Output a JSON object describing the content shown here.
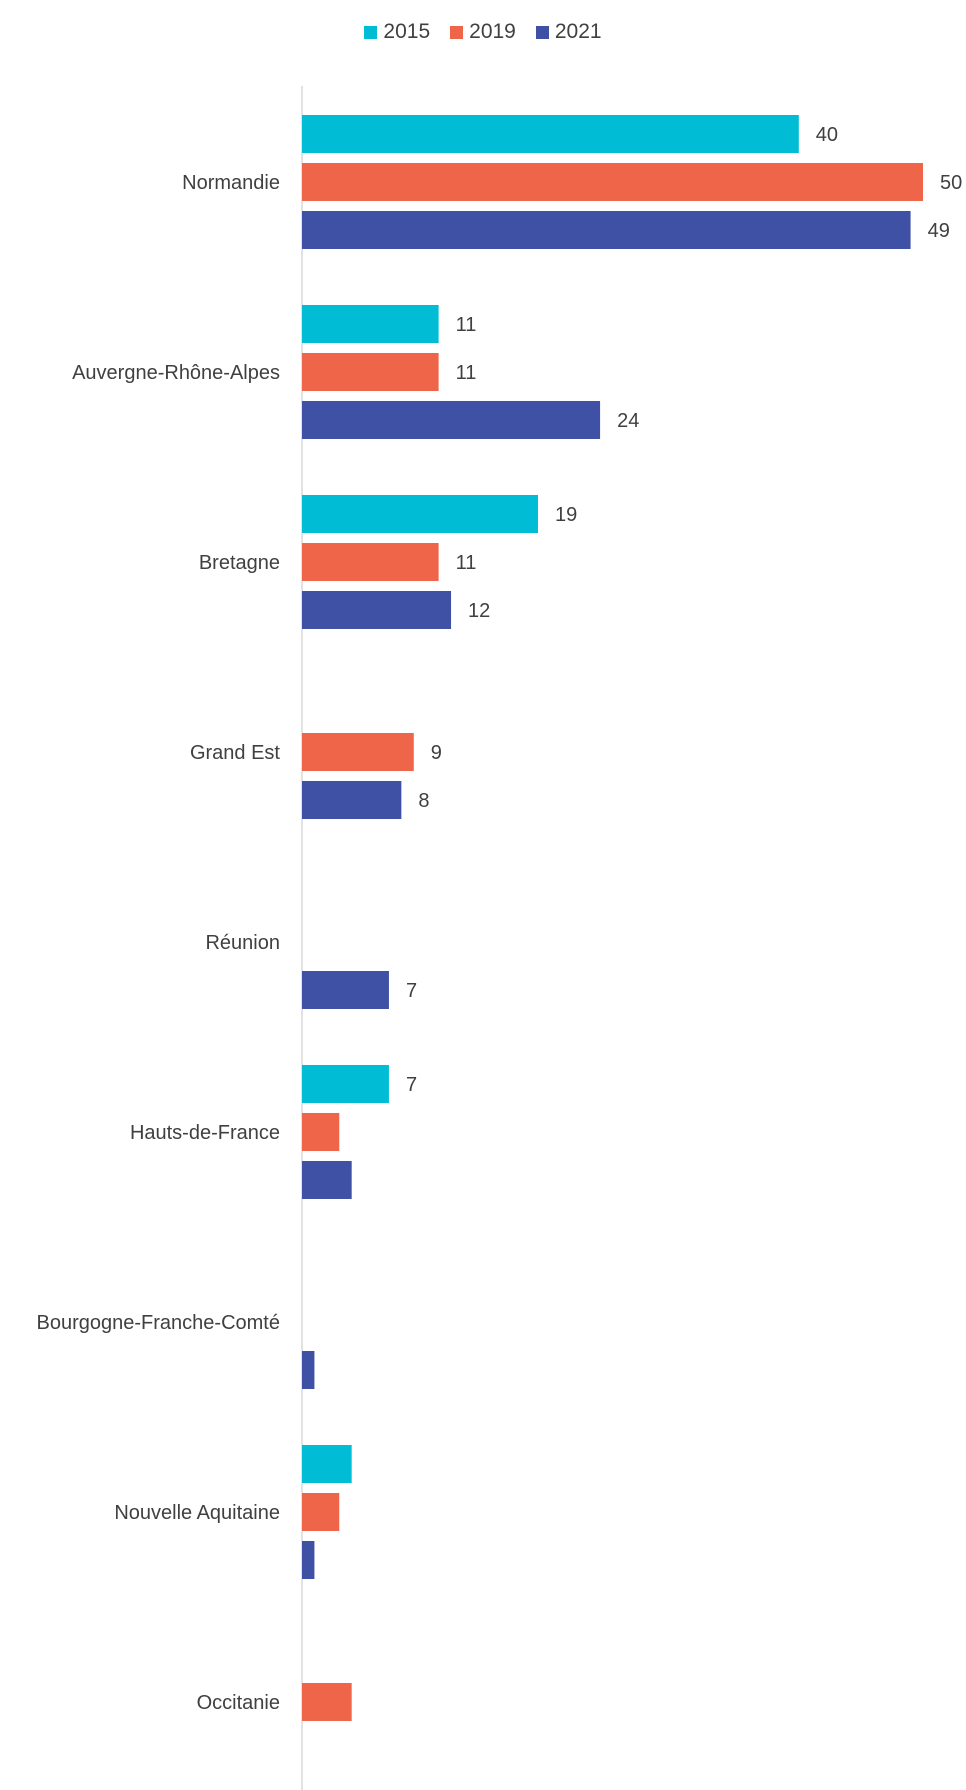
{
  "chart_data": {
    "type": "bar",
    "orientation": "horizontal",
    "legend_position": "top",
    "grid": false,
    "categories": [
      "Normandie",
      "Auvergne-Rhône-Alpes",
      "Bretagne",
      "Grand Est",
      "Réunion",
      "Hauts-de-France",
      "Bourgogne-Franche-Comté",
      "Nouvelle Aquitaine",
      "Occitanie"
    ],
    "series": [
      {
        "name": "2015",
        "color": "#00BCD4",
        "values": [
          40,
          11,
          19,
          null,
          null,
          7,
          null,
          4,
          null
        ],
        "labels": [
          "40",
          "11",
          "19",
          "",
          "",
          "7",
          "",
          "",
          ""
        ]
      },
      {
        "name": "2019",
        "color": "#EF6549",
        "values": [
          50,
          11,
          11,
          9,
          null,
          3,
          null,
          3,
          4
        ],
        "labels": [
          "50",
          "11",
          "11",
          "9",
          "",
          "",
          "",
          "",
          ""
        ]
      },
      {
        "name": "2021",
        "color": "#3F51A5",
        "values": [
          49,
          24,
          12,
          8,
          7,
          4,
          1,
          1,
          null
        ],
        "labels": [
          "49",
          "24",
          "12",
          "8",
          "7",
          "",
          "",
          "",
          ""
        ]
      }
    ],
    "xlim": [
      0,
      50
    ]
  }
}
